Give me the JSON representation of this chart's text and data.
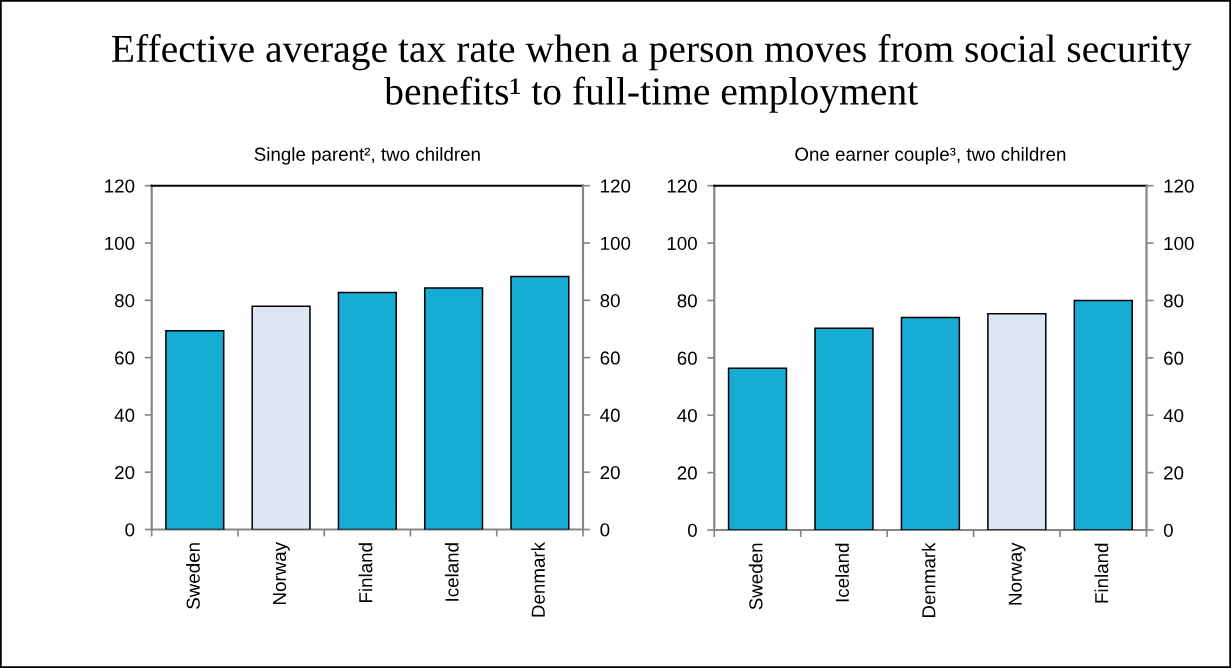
{
  "chart_data": [
    {
      "type": "other",
      "title": "Effective average tax rate when a person moves from social security benefits¹ to full-time employment"
    },
    {
      "type": "bar",
      "title": "Single parent², two children",
      "categories": [
        "Sweden",
        "Norway",
        "Finland",
        "Iceland",
        "Denmark"
      ],
      "values": [
        69.4,
        77.9,
        82.7,
        84.3,
        88.3
      ],
      "colors": [
        "#17acd3",
        "#dce6f2",
        "#17acd3",
        "#17acd3",
        "#17acd3"
      ],
      "ylim": [
        0,
        120
      ],
      "yticks": [
        0,
        20,
        40,
        60,
        80,
        100,
        120
      ],
      "y2lim": [
        0,
        120
      ],
      "y2ticks": [
        0,
        20,
        40,
        60,
        80,
        100,
        120
      ]
    },
    {
      "type": "bar",
      "title": "One earner couple³, two children",
      "categories": [
        "Sweden",
        "Iceland",
        "Denmark",
        "Norway",
        "Finland"
      ],
      "values": [
        56.4,
        70.3,
        74.1,
        75.4,
        80.0
      ],
      "colors": [
        "#17acd3",
        "#17acd3",
        "#17acd3",
        "#dce6f2",
        "#17acd3"
      ],
      "ylim": [
        0,
        120
      ],
      "yticks": [
        0,
        20,
        40,
        60,
        80,
        100,
        120
      ],
      "y2lim": [
        0,
        120
      ],
      "y2ticks": [
        0,
        20,
        40,
        60,
        80,
        100,
        120
      ]
    }
  ]
}
